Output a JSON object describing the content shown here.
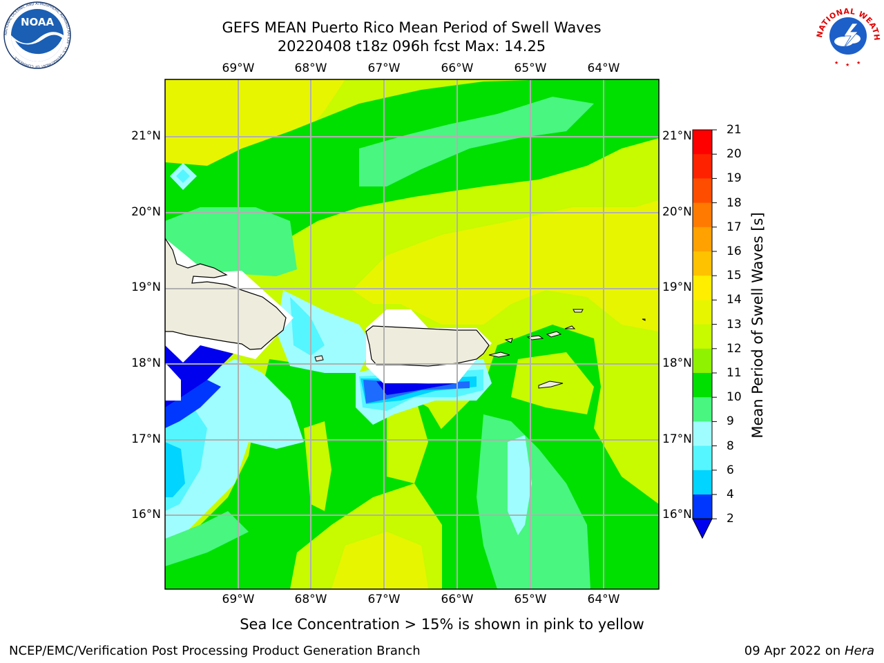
{
  "header": {
    "title_line1": "GEFS MEAN Puerto Rico Mean Period of Swell Waves",
    "title_line2": "20220408 t18z 096h fcst   Max: 14.25"
  },
  "logos": {
    "left": {
      "name": "NOAA",
      "ring_text": "NATIONAL OCEANIC AND ATMOSPHERIC ADMINISTRATION · U.S. DEPARTMENT OF COMMERCE ·"
    },
    "right": {
      "name": "NATIONAL WEATHER SERVICE",
      "ring_text": "NATIONAL WEATHER SERVICE"
    }
  },
  "map": {
    "lon_labels": [
      "69°W",
      "68°W",
      "67°W",
      "66°W",
      "65°W",
      "64°W"
    ],
    "lat_labels": [
      "21°N",
      "20°N",
      "19°N",
      "18°N",
      "17°N",
      "16°N"
    ],
    "land_color": "#eeecdc",
    "grid_color": "#b0b0b0"
  },
  "colorbar": {
    "label": "Mean Period of Swell Waves [s]",
    "ticks": [
      "21",
      "20",
      "19",
      "18",
      "17",
      "16",
      "15",
      "14",
      "13",
      "12",
      "11",
      "10",
      "9",
      "8",
      "6",
      "4",
      "2"
    ],
    "levels": [
      2,
      4,
      6,
      8,
      9,
      10,
      11,
      12,
      13,
      14,
      15,
      16,
      17,
      18,
      19,
      20,
      21
    ],
    "colors": [
      "#0037ff",
      "#00d4ff",
      "#55f6ff",
      "#a0fdff",
      "#48f680",
      "#00e000",
      "#8ef200",
      "#c8fa00",
      "#e8f500",
      "#ffee00",
      "#ffc200",
      "#ffa100",
      "#ff7a00",
      "#ff4d00",
      "#ff2200",
      "#ff0000"
    ],
    "under_color": "#0000ee"
  },
  "caption": "Sea Ice Concentration > 15% is shown in pink to yellow",
  "footer": {
    "left": "NCEP/EMC/Verification Post Processing Product Generation Branch",
    "right_date": "09 Apr 2022 on ",
    "right_host": "Hera"
  }
}
